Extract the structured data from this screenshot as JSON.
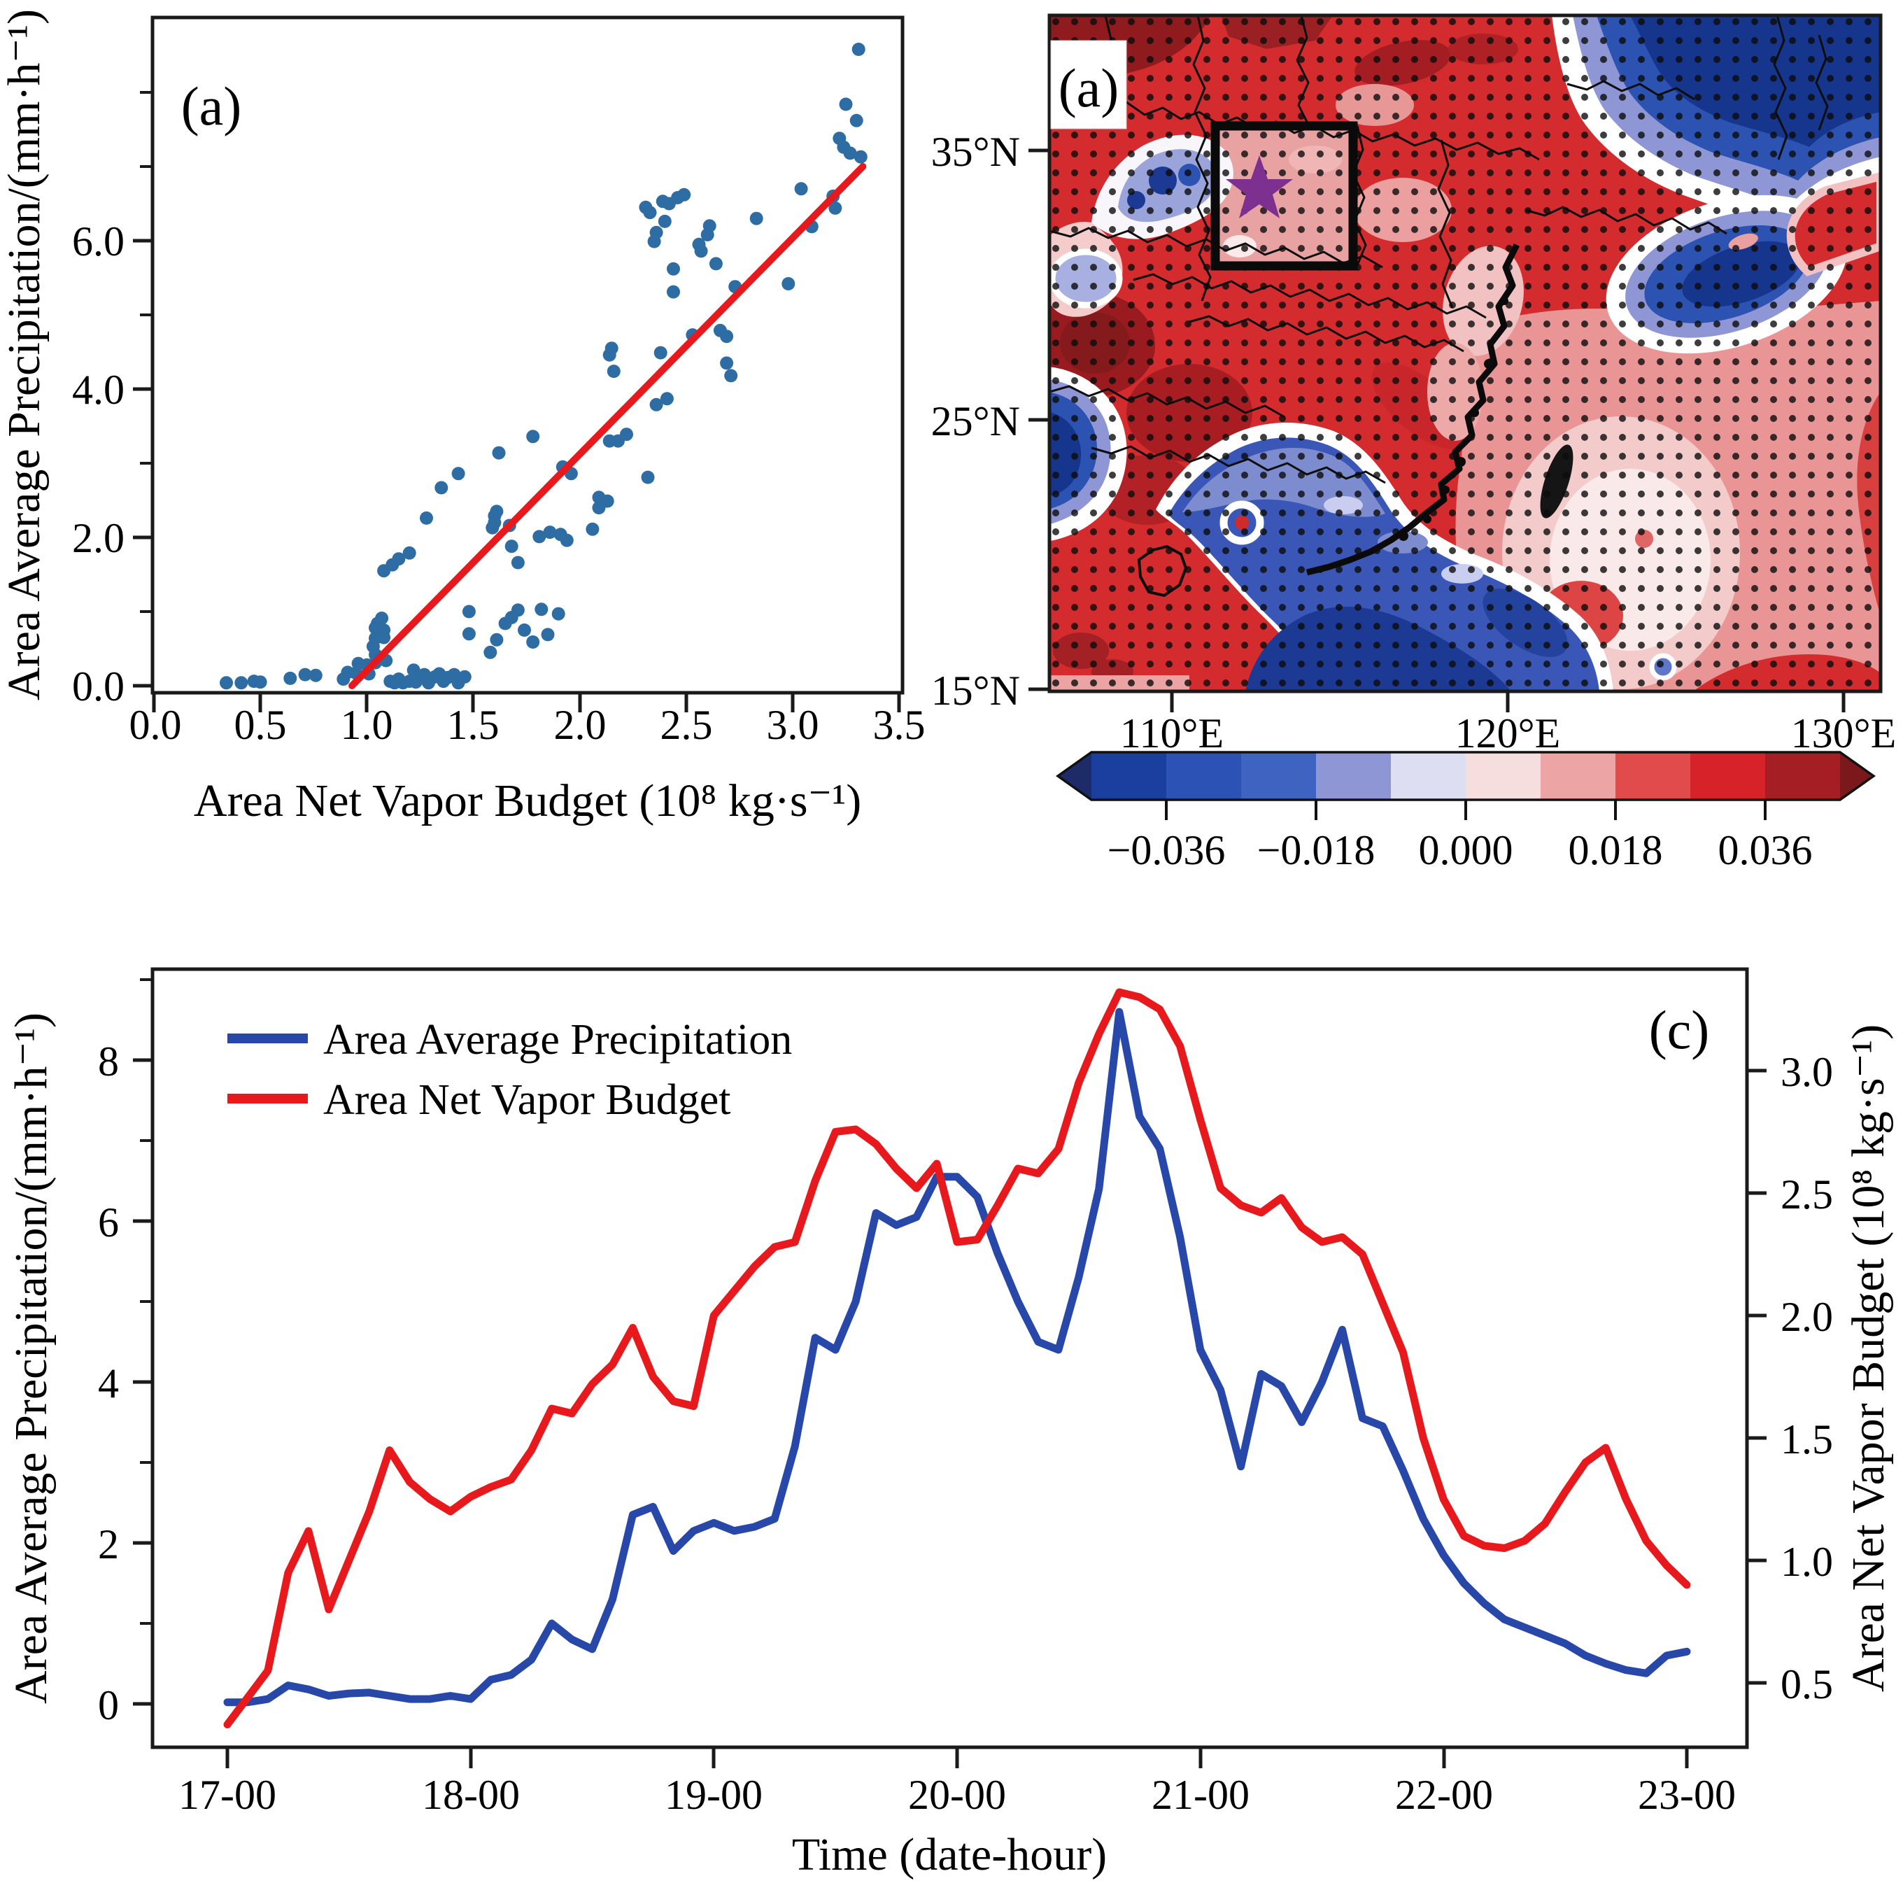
{
  "figure": {
    "panel_letters": {
      "scatter": "(a)",
      "map": "(a)",
      "timeseries": "(c)"
    }
  },
  "chart_data": [
    {
      "id": "panel-a-scatter",
      "type": "scatter",
      "panel_label": "(a)",
      "xlabel": "Area Net Vapor Budget (10⁸ kg·s⁻¹)",
      "ylabel": "Area Average Precipitation/(mm·h⁻¹)",
      "xlim": [
        0,
        3.5
      ],
      "ylim": [
        0,
        9.05
      ],
      "x_ticks": [
        "0.0",
        "0.5",
        "1.0",
        "1.5",
        "2.0",
        "2.5",
        "3.0",
        "3.5"
      ],
      "y_ticks": [
        "0.0",
        "2.0",
        "4.0",
        "6.0"
      ],
      "grid": false,
      "point_color": "#2e6da4",
      "fit_line": {
        "color": "#e8191c",
        "x": [
          0.93,
          3.33
        ],
        "y": [
          0.0,
          7.0
        ]
      },
      "points": [
        [
          0.34,
          0.04
        ],
        [
          0.41,
          0.04
        ],
        [
          0.47,
          0.06
        ],
        [
          0.5,
          0.05
        ],
        [
          0.64,
          0.1
        ],
        [
          0.71,
          0.15
        ],
        [
          0.76,
          0.14
        ],
        [
          0.89,
          0.09
        ],
        [
          0.91,
          0.18
        ],
        [
          0.95,
          0.17
        ],
        [
          0.96,
          0.3
        ],
        [
          1.0,
          0.28
        ],
        [
          1.01,
          0.16
        ],
        [
          1.04,
          0.31
        ],
        [
          1.04,
          0.42
        ],
        [
          1.03,
          0.53
        ],
        [
          1.04,
          0.64
        ],
        [
          1.04,
          0.78
        ],
        [
          1.05,
          0.84
        ],
        [
          1.07,
          0.91
        ],
        [
          1.08,
          0.75
        ],
        [
          1.08,
          0.65
        ],
        [
          1.09,
          0.34
        ],
        [
          1.11,
          0.06
        ],
        [
          1.13,
          0.04
        ],
        [
          1.15,
          0.09
        ],
        [
          1.17,
          0.04
        ],
        [
          1.2,
          0.06
        ],
        [
          1.22,
          0.21
        ],
        [
          1.23,
          0.05
        ],
        [
          1.25,
          0.1
        ],
        [
          1.27,
          0.15
        ],
        [
          1.29,
          0.04
        ],
        [
          1.32,
          0.12
        ],
        [
          1.34,
          0.16
        ],
        [
          1.36,
          0.06
        ],
        [
          1.38,
          0.11
        ],
        [
          1.41,
          0.15
        ],
        [
          1.43,
          0.04
        ],
        [
          1.46,
          0.12
        ],
        [
          1.08,
          1.55
        ],
        [
          1.12,
          1.63
        ],
        [
          1.15,
          1.71
        ],
        [
          1.2,
          1.79
        ],
        [
          1.28,
          2.26
        ],
        [
          1.35,
          2.67
        ],
        [
          1.43,
          2.86
        ],
        [
          1.48,
          1.0
        ],
        [
          1.62,
          3.14
        ],
        [
          1.6,
          2.2
        ],
        [
          1.59,
          2.13
        ],
        [
          1.6,
          2.29
        ],
        [
          1.61,
          2.35
        ],
        [
          1.67,
          2.16
        ],
        [
          1.68,
          1.88
        ],
        [
          1.71,
          1.66
        ],
        [
          1.78,
          3.36
        ],
        [
          1.81,
          2.01
        ],
        [
          1.86,
          2.07
        ],
        [
          1.91,
          2.04
        ],
        [
          1.94,
          1.96
        ],
        [
          1.92,
          2.95
        ],
        [
          1.96,
          2.86
        ],
        [
          1.48,
          0.7
        ],
        [
          1.58,
          0.45
        ],
        [
          1.61,
          0.62
        ],
        [
          1.65,
          0.84
        ],
        [
          1.68,
          0.92
        ],
        [
          1.71,
          1.02
        ],
        [
          1.74,
          0.75
        ],
        [
          1.78,
          0.59
        ],
        [
          1.82,
          1.03
        ],
        [
          1.85,
          0.69
        ],
        [
          1.9,
          0.97
        ],
        [
          2.06,
          2.11
        ],
        [
          2.09,
          2.4
        ],
        [
          2.09,
          2.54
        ],
        [
          2.13,
          2.49
        ],
        [
          2.14,
          3.3
        ],
        [
          2.14,
          4.46
        ],
        [
          2.15,
          4.55
        ],
        [
          2.16,
          4.24
        ],
        [
          2.18,
          3.3
        ],
        [
          2.22,
          3.39
        ],
        [
          2.31,
          6.45
        ],
        [
          2.33,
          6.38
        ],
        [
          2.36,
          6.11
        ],
        [
          2.35,
          5.99
        ],
        [
          2.39,
          6.53
        ],
        [
          2.4,
          6.26
        ],
        [
          2.42,
          6.5
        ],
        [
          2.44,
          5.62
        ],
        [
          2.44,
          5.31
        ],
        [
          2.46,
          6.58
        ],
        [
          2.49,
          6.62
        ],
        [
          2.32,
          2.81
        ],
        [
          2.36,
          3.79
        ],
        [
          2.38,
          4.49
        ],
        [
          2.41,
          3.87
        ],
        [
          2.53,
          4.73
        ],
        [
          2.56,
          5.95
        ],
        [
          2.57,
          5.86
        ],
        [
          2.6,
          6.08
        ],
        [
          2.61,
          6.2
        ],
        [
          2.64,
          5.69
        ],
        [
          2.66,
          4.79
        ],
        [
          2.69,
          4.71
        ],
        [
          2.69,
          4.35
        ],
        [
          2.71,
          4.18
        ],
        [
          2.73,
          5.38
        ],
        [
          2.83,
          6.3
        ],
        [
          2.98,
          5.42
        ],
        [
          3.04,
          6.7
        ],
        [
          3.09,
          6.19
        ],
        [
          3.19,
          6.6
        ],
        [
          3.2,
          6.44
        ],
        [
          3.22,
          7.38
        ],
        [
          3.24,
          7.26
        ],
        [
          3.25,
          7.84
        ],
        [
          3.27,
          7.18
        ],
        [
          3.3,
          7.62
        ],
        [
          3.31,
          8.58
        ],
        [
          3.32,
          7.13
        ]
      ]
    },
    {
      "id": "panel-map",
      "type": "heatmap",
      "panel_label": "(a)",
      "x_ticks": [
        "110°E",
        "120°E",
        "130°E"
      ],
      "y_ticks": [
        "35°N",
        "25°N",
        "15°N"
      ],
      "lon_range": [
        106.3,
        131.1
      ],
      "lat_range": [
        14.9,
        40.0
      ],
      "star": {
        "lon": 112.6,
        "lat": 33.4,
        "color": "#7d3090"
      },
      "highlight_box": {
        "lon": [
          111.3,
          115.4
        ],
        "lat": [
          30.7,
          35.9
        ]
      },
      "colorbar": {
        "tick_labels": [
          "−0.036",
          "−0.018",
          "0.000",
          "0.018",
          "0.036"
        ],
        "colors": [
          "#1d2b69",
          "#1a3f9e",
          "#2d52b5",
          "#3e63c0",
          "#8e96d6",
          "#dddef2",
          "#f7dede",
          "#eda4a4",
          "#e14b4b",
          "#d8222a",
          "#a51e24",
          "#7b181c"
        ]
      }
    },
    {
      "id": "panel-c-timeseries",
      "type": "line",
      "panel_label": "(c)",
      "xlabel": "Time (date-hour)",
      "ylabel_left": "Area Average Precipitation/(mm·h⁻¹)",
      "ylabel_right": "Area Net Vapor Budget (10⁸ kg·s⁻¹)",
      "x_ticks": [
        "17-00",
        "18-00",
        "19-00",
        "20-00",
        "21-00",
        "22-00",
        "23-00"
      ],
      "y_ticks_left": [
        "0",
        "2",
        "4",
        "6",
        "8"
      ],
      "y_ticks_right": [
        "0.5",
        "1.0",
        "1.5",
        "2.0",
        "2.5",
        "3.0"
      ],
      "ylim_left": [
        -0.55,
        9.1
      ],
      "ylim_right": [
        0.24,
        3.41
      ],
      "x_range_hours": [
        0,
        144
      ],
      "step_hours": 2,
      "legend": [
        {
          "label": "Area Average Precipitation",
          "color": "#2747a9"
        },
        {
          "label": "Area Net Vapor Budget",
          "color": "#e8191c"
        }
      ],
      "series": [
        {
          "name": "Area Average Precipitation",
          "axis": "left",
          "color": "#2747a9",
          "values": [
            0.02,
            0.02,
            0.06,
            0.23,
            0.18,
            0.1,
            0.13,
            0.14,
            0.1,
            0.06,
            0.06,
            0.1,
            0.06,
            0.3,
            0.36,
            0.55,
            1.0,
            0.8,
            0.68,
            1.3,
            2.35,
            2.45,
            1.9,
            2.15,
            2.25,
            2.15,
            2.2,
            2.3,
            3.2,
            4.55,
            4.4,
            5.0,
            6.1,
            5.95,
            6.05,
            6.55,
            6.55,
            6.3,
            5.6,
            5.0,
            4.5,
            4.4,
            5.3,
            6.4,
            8.6,
            7.3,
            6.9,
            5.8,
            4.4,
            3.9,
            2.95,
            4.1,
            3.95,
            3.5,
            4.0,
            4.65,
            3.55,
            3.45,
            2.9,
            2.3,
            1.85,
            1.5,
            1.25,
            1.05,
            0.95,
            0.85,
            0.75,
            0.6,
            0.5,
            0.42,
            0.38,
            0.6,
            0.65
          ]
        },
        {
          "name": "Area Net Vapor Budget",
          "axis": "right",
          "color": "#e8191c",
          "values": [
            0.33,
            0.44,
            0.55,
            0.95,
            1.12,
            0.8,
            1.0,
            1.2,
            1.45,
            1.32,
            1.25,
            1.2,
            1.26,
            1.3,
            1.33,
            1.45,
            1.62,
            1.6,
            1.72,
            1.8,
            1.95,
            1.75,
            1.65,
            1.63,
            2.0,
            2.1,
            2.2,
            2.28,
            2.3,
            2.55,
            2.75,
            2.76,
            2.7,
            2.6,
            2.52,
            2.62,
            2.3,
            2.31,
            2.45,
            2.6,
            2.58,
            2.68,
            2.95,
            3.15,
            3.32,
            3.3,
            3.25,
            3.1,
            2.8,
            2.52,
            2.45,
            2.42,
            2.48,
            2.36,
            2.3,
            2.32,
            2.25,
            2.05,
            1.85,
            1.5,
            1.25,
            1.1,
            1.06,
            1.05,
            1.08,
            1.15,
            1.28,
            1.4,
            1.46,
            1.25,
            1.08,
            0.98,
            0.9
          ]
        }
      ]
    }
  ]
}
